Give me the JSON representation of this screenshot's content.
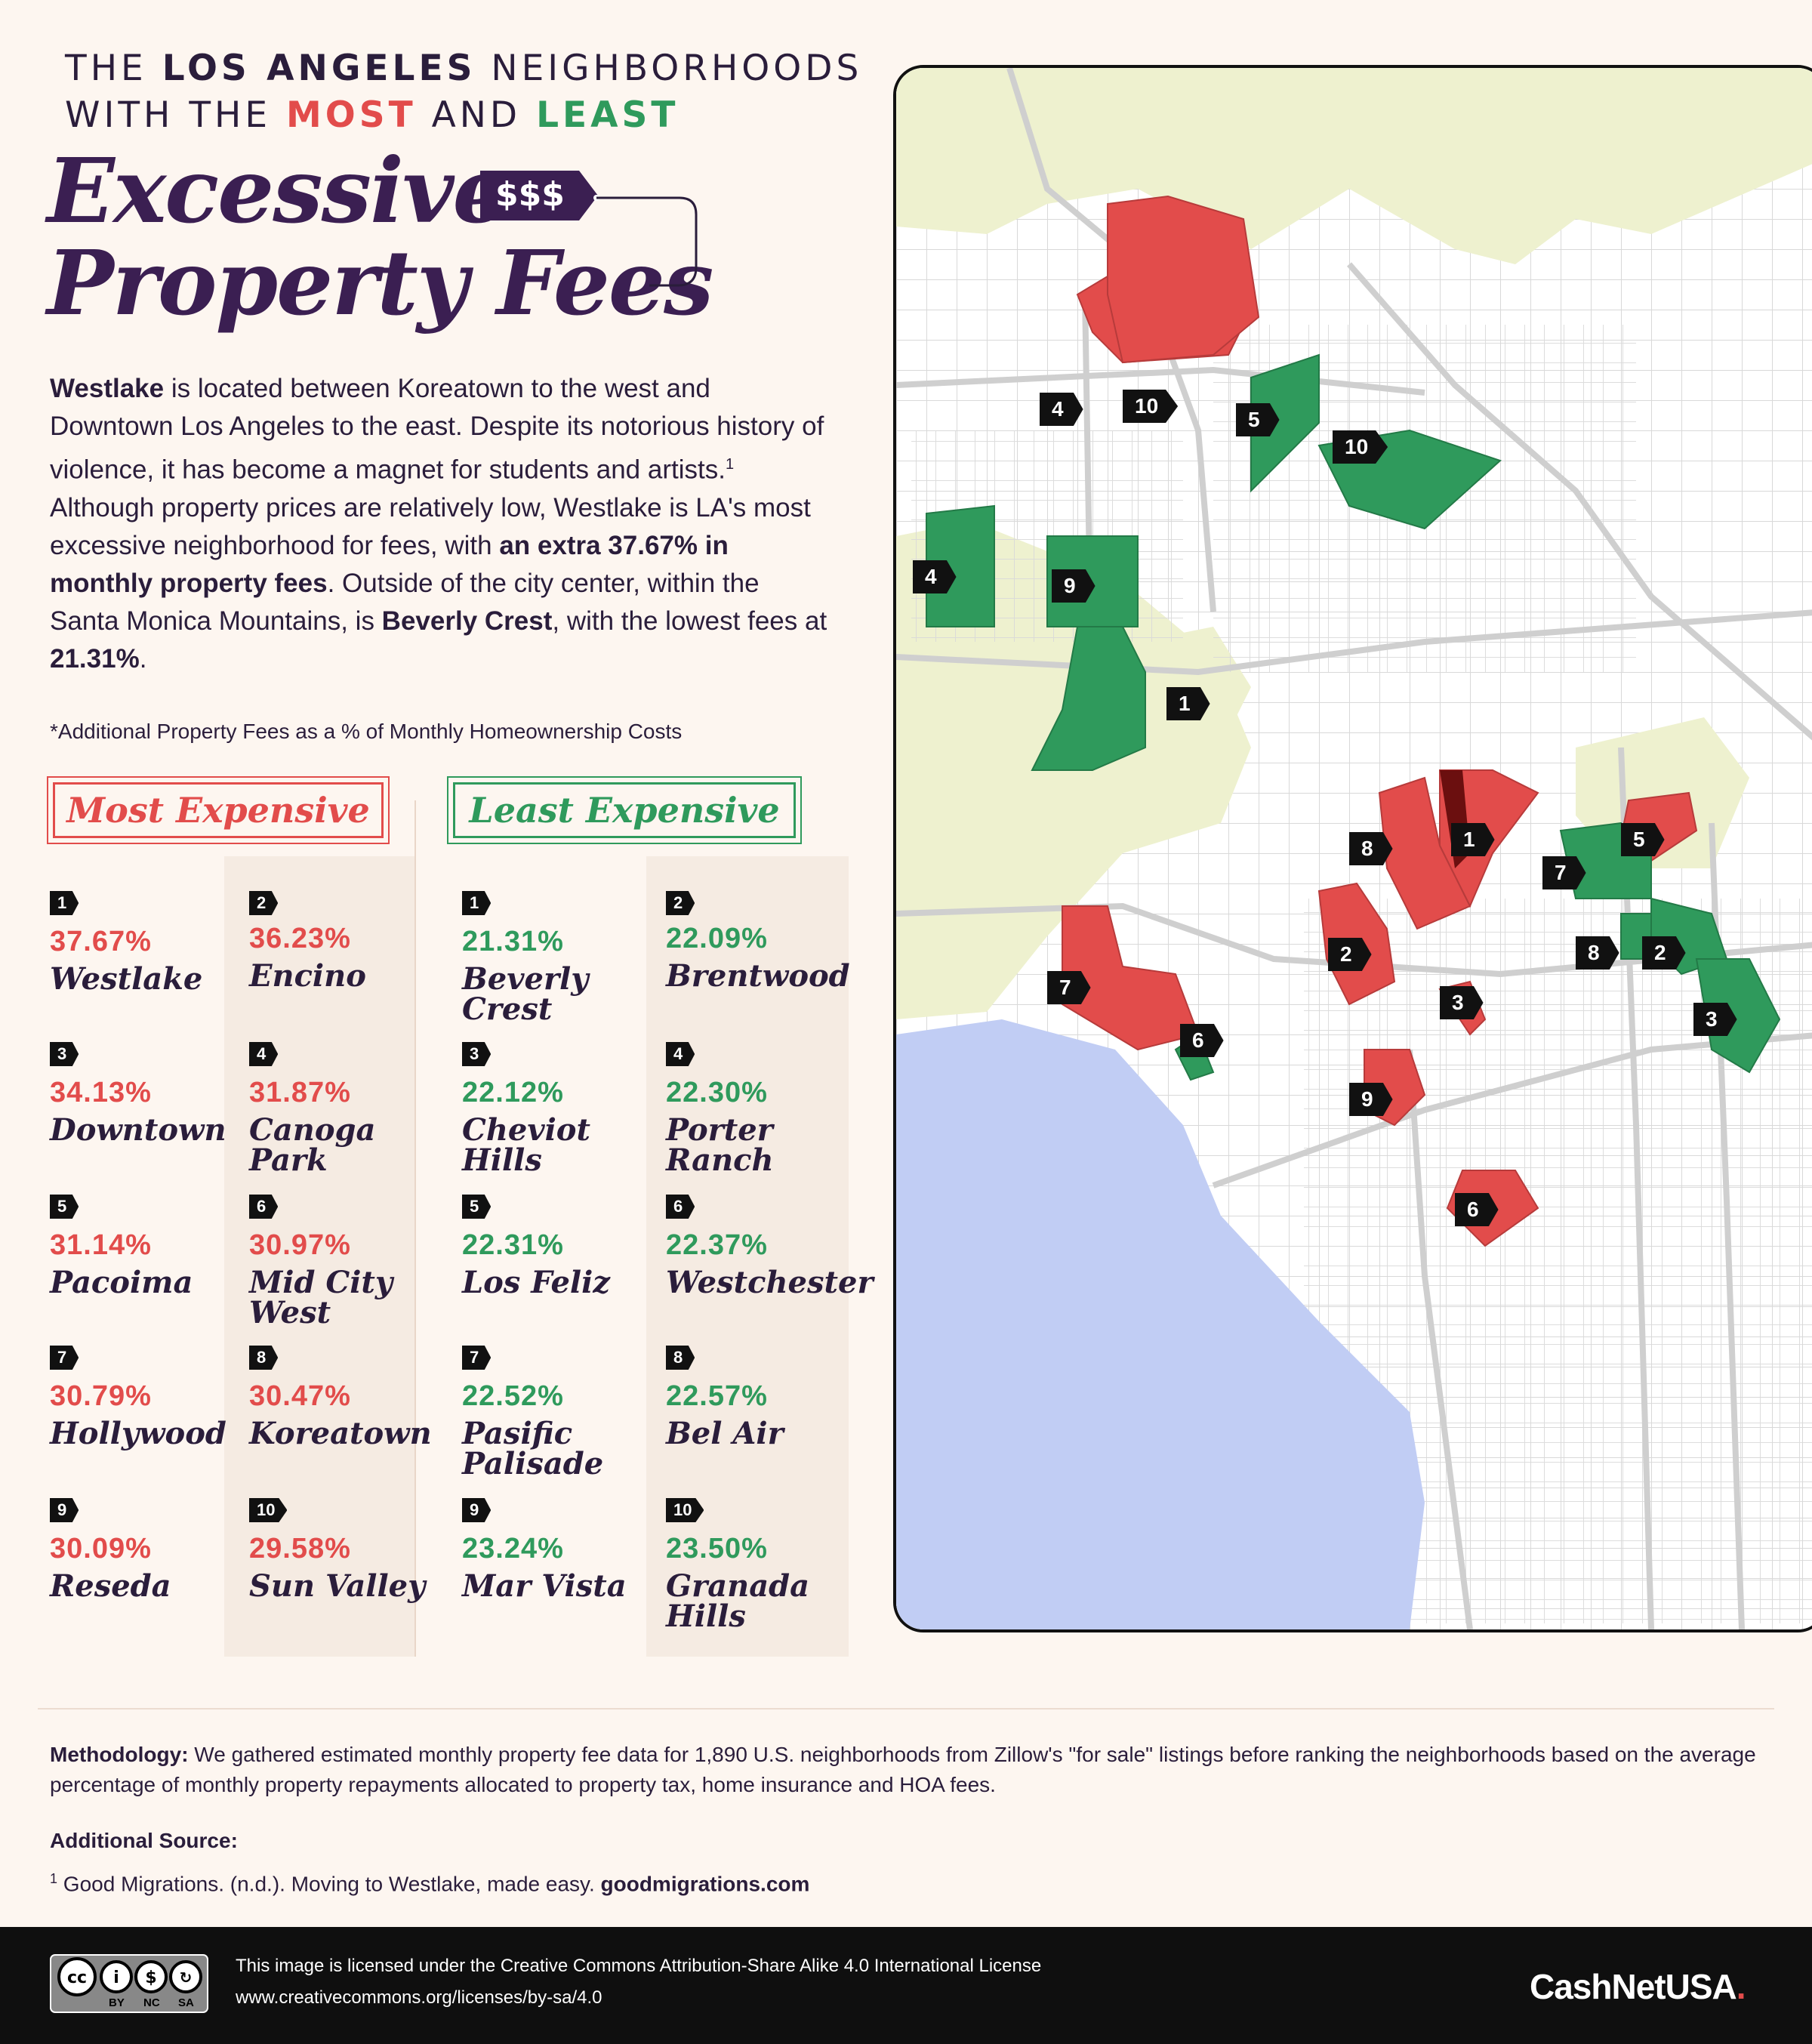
{
  "title": {
    "line1_a": "THE",
    "line1_b": "LOS ANGELES",
    "line1_c": "NEIGHBORHOODS",
    "line2_a": "WITH THE",
    "line2_b": "MOST",
    "line2_c": "AND",
    "line2_d": "LEAST",
    "main1": "Excessive",
    "main2": "Property Fees",
    "tag": "$$$"
  },
  "intro": {
    "p1": "Westlake",
    "p2": " is located between Koreatown to the west and Downtown Los Angeles to the east. Despite its notorious history of violence, it has become a magnet for students and artists.",
    "sup": "1",
    "p3": " Although property prices are relatively low, Westlake is LA's most excessive neighborhood for fees, with ",
    "p4": "an extra 37.67% in monthly property fees",
    "p5": ". Outside of the city center, within the Santa Monica Mountains, is ",
    "p6": "Beverly Crest",
    "p7": ", with the lowest fees at ",
    "p8": "21.31%",
    "p9": "."
  },
  "footnote_metric": "*Additional Property Fees as a % of Monthly Homeownership Costs",
  "most_header": "Most Expensive",
  "least_header": "Least Expensive",
  "most": [
    {
      "rank": "1",
      "pct": "37.67%",
      "name": "Westlake"
    },
    {
      "rank": "2",
      "pct": "36.23%",
      "name": "Encino"
    },
    {
      "rank": "3",
      "pct": "34.13%",
      "name": "Downtown"
    },
    {
      "rank": "4",
      "pct": "31.87%",
      "name": "Canoga Park"
    },
    {
      "rank": "5",
      "pct": "31.14%",
      "name": "Pacoima"
    },
    {
      "rank": "6",
      "pct": "30.97%",
      "name": "Mid City West"
    },
    {
      "rank": "7",
      "pct": "30.79%",
      "name": "Hollywood"
    },
    {
      "rank": "8",
      "pct": "30.47%",
      "name": "Koreatown"
    },
    {
      "rank": "9",
      "pct": "30.09%",
      "name": "Reseda"
    },
    {
      "rank": "10",
      "pct": "29.58%",
      "name": "Sun Valley"
    }
  ],
  "least": [
    {
      "rank": "1",
      "pct": "21.31%",
      "name": "Beverly Crest"
    },
    {
      "rank": "2",
      "pct": "22.09%",
      "name": "Brentwood"
    },
    {
      "rank": "3",
      "pct": "22.12%",
      "name": "Cheviot Hills"
    },
    {
      "rank": "4",
      "pct": "22.30%",
      "name": "Porter Ranch"
    },
    {
      "rank": "5",
      "pct": "22.31%",
      "name": "Los Feliz"
    },
    {
      "rank": "6",
      "pct": "22.37%",
      "name": "Westchester"
    },
    {
      "rank": "7",
      "pct": "22.52%",
      "name": "Pasific Palisade"
    },
    {
      "rank": "8",
      "pct": "22.57%",
      "name": "Bel Air"
    },
    {
      "rank": "9",
      "pct": "23.24%",
      "name": "Mar Vista"
    },
    {
      "rank": "10",
      "pct": "23.50%",
      "name": "Granada Hills"
    }
  ],
  "map_markers": {
    "red": [
      "1",
      "2",
      "3",
      "4",
      "5",
      "6",
      "7",
      "8",
      "9",
      "10"
    ],
    "green": [
      "1",
      "2",
      "3",
      "4",
      "5",
      "6",
      "7",
      "8",
      "9",
      "10"
    ]
  },
  "methodology": {
    "label": "Methodology:",
    "text": " We gathered estimated monthly property fee data for 1,890 U.S. neighborhoods from Zillow's \"for sale\" listings before ranking the neighborhoods based on the average percentage of monthly property repayments allocated to property tax, home insurance and HOA fees."
  },
  "source": {
    "label": "Additional Source:",
    "sup": "1",
    "text": " Good Migrations. (n.d.). Moving to Westlake, made easy. ",
    "link": "goodmigrations.com"
  },
  "footer": {
    "license": "This image is licensed under the Creative Commons Attribution-Share Alike 4.0 International License",
    "url": "www.creativecommons.org/licenses/by-sa/4.0",
    "cc_labels": [
      "BY",
      "NC",
      "SA"
    ],
    "brand": "CashNetUSA",
    "brand_dot": "."
  },
  "colors": {
    "most": "#e24c4b",
    "least": "#2f9a5c",
    "title": "#3b1f52",
    "land": "#ffffff",
    "park": "#eef1cf",
    "water": "#c1cdf4"
  }
}
